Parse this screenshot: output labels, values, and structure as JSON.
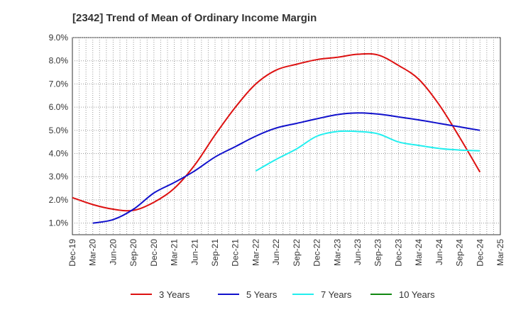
{
  "chart_data": {
    "type": "line",
    "title": "[2342]  Trend of Mean of Ordinary Income Margin",
    "xlabel": "",
    "ylabel": "",
    "ylim": [
      0.5,
      9.0
    ],
    "yticks": [
      1.0,
      2.0,
      3.0,
      4.0,
      5.0,
      6.0,
      7.0,
      8.0,
      9.0
    ],
    "ytick_labels": [
      "1.0%",
      "2.0%",
      "3.0%",
      "4.0%",
      "5.0%",
      "6.0%",
      "7.0%",
      "8.0%",
      "9.0%"
    ],
    "x_tick_labels": [
      "Dec-19",
      "Mar-20",
      "Jun-20",
      "Sep-20",
      "Dec-20",
      "Mar-21",
      "Jun-21",
      "Sep-21",
      "Dec-21",
      "Mar-22",
      "Jun-22",
      "Sep-22",
      "Dec-22",
      "Mar-23",
      "Jun-23",
      "Sep-23",
      "Dec-23",
      "Mar-24",
      "Jun-24",
      "Sep-24",
      "Dec-24",
      "Mar-25"
    ],
    "grid": true,
    "legend_position": "bottom",
    "series": [
      {
        "name": "3 Years",
        "color": "#dd1111",
        "points": [
          [
            "Dec-19",
            2.1
          ],
          [
            "Mar-20",
            1.8
          ],
          [
            "Jun-20",
            1.6
          ],
          [
            "Sep-20",
            1.55
          ],
          [
            "Dec-20",
            1.9
          ],
          [
            "Mar-21",
            2.5
          ],
          [
            "Jun-21",
            3.5
          ],
          [
            "Sep-21",
            4.8
          ],
          [
            "Dec-21",
            6.0
          ],
          [
            "Mar-22",
            7.0
          ],
          [
            "Jun-22",
            7.6
          ],
          [
            "Sep-22",
            7.85
          ],
          [
            "Dec-22",
            8.05
          ],
          [
            "Mar-23",
            8.15
          ],
          [
            "Jun-23",
            8.28
          ],
          [
            "Sep-23",
            8.25
          ],
          [
            "Dec-23",
            7.8
          ],
          [
            "Mar-24",
            7.2
          ],
          [
            "Jun-24",
            6.1
          ],
          [
            "Sep-24",
            4.7
          ],
          [
            "Dec-24",
            3.2
          ]
        ]
      },
      {
        "name": "5 Years",
        "color": "#1111cc",
        "points": [
          [
            "Dec-19",
            null
          ],
          [
            "Mar-20",
            1.0
          ],
          [
            "Jun-20",
            1.15
          ],
          [
            "Sep-20",
            1.6
          ],
          [
            "Dec-20",
            2.3
          ],
          [
            "Mar-21",
            2.75
          ],
          [
            "Jun-21",
            3.25
          ],
          [
            "Sep-21",
            3.85
          ],
          [
            "Dec-21",
            4.3
          ],
          [
            "Mar-22",
            4.75
          ],
          [
            "Jun-22",
            5.1
          ],
          [
            "Sep-22",
            5.3
          ],
          [
            "Dec-22",
            5.5
          ],
          [
            "Mar-23",
            5.68
          ],
          [
            "Jun-23",
            5.75
          ],
          [
            "Sep-23",
            5.7
          ],
          [
            "Dec-23",
            5.58
          ],
          [
            "Mar-24",
            5.45
          ],
          [
            "Jun-24",
            5.3
          ],
          [
            "Sep-24",
            5.15
          ],
          [
            "Dec-24",
            5.0
          ]
        ]
      },
      {
        "name": "7 Years",
        "color": "#22eeee",
        "points": [
          [
            "Dec-19",
            null
          ],
          [
            "Mar-20",
            null
          ],
          [
            "Jun-20",
            null
          ],
          [
            "Sep-20",
            null
          ],
          [
            "Dec-20",
            null
          ],
          [
            "Mar-21",
            null
          ],
          [
            "Jun-21",
            null
          ],
          [
            "Sep-21",
            null
          ],
          [
            "Dec-21",
            null
          ],
          [
            "Mar-22",
            3.25
          ],
          [
            "Jun-22",
            3.75
          ],
          [
            "Sep-22",
            4.2
          ],
          [
            "Dec-22",
            4.75
          ],
          [
            "Mar-23",
            4.95
          ],
          [
            "Jun-23",
            4.95
          ],
          [
            "Sep-23",
            4.85
          ],
          [
            "Dec-23",
            4.5
          ],
          [
            "Mar-24",
            4.35
          ],
          [
            "Jun-24",
            4.22
          ],
          [
            "Sep-24",
            4.15
          ],
          [
            "Dec-24",
            4.12
          ]
        ]
      },
      {
        "name": "10 Years",
        "color": "#118811",
        "points": []
      }
    ]
  }
}
